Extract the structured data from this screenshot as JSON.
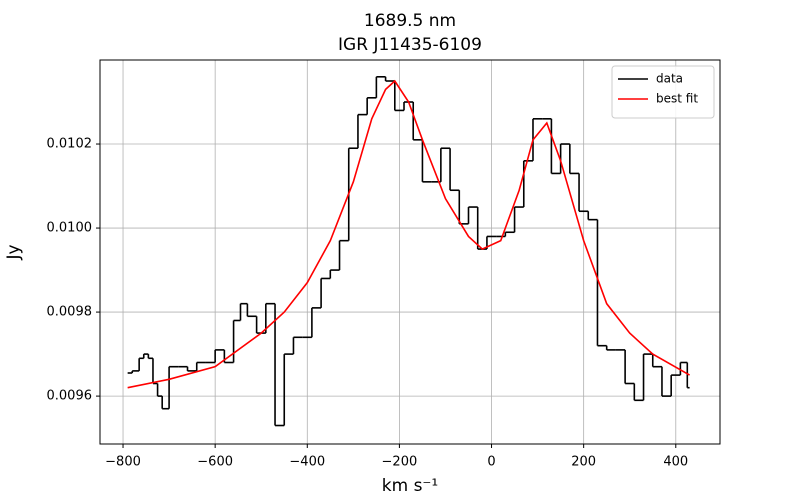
{
  "chart_data": {
    "type": "line",
    "title": "1689.5 nm",
    "subtitle": "IGR J11435-6109",
    "x_label": "km s⁻¹",
    "y_label": "Jy",
    "xlim": [
      -850,
      496
    ],
    "ylim": [
      0.009486,
      0.0104
    ],
    "xticks": [
      {
        "value": -800,
        "label": "−800"
      },
      {
        "value": -600,
        "label": "−600"
      },
      {
        "value": -400,
        "label": "−400"
      },
      {
        "value": -200,
        "label": "−200"
      },
      0,
      200,
      400
    ],
    "yticks": [
      0.0096,
      0.0098,
      {
        "value": 0.01,
        "label": "0.0100"
      },
      0.0102
    ],
    "grid": true,
    "legend": "upper right",
    "series": [
      {
        "name": "data",
        "color": "#000000",
        "style": "steps",
        "x": [
          -790,
          -770,
          -760,
          -750,
          -740,
          -730,
          -720,
          -710,
          -690,
          -670,
          -650,
          -630,
          -610,
          -590,
          -570,
          -550,
          -540,
          -520,
          -500,
          -480,
          -460,
          -440,
          -420,
          -400,
          -380,
          -360,
          -340,
          -320,
          -300,
          -280,
          -260,
          -240,
          -220,
          -200,
          -180,
          -160,
          -140,
          -120,
          -100,
          -80,
          -60,
          -40,
          -20,
          0,
          20,
          40,
          60,
          80,
          100,
          120,
          140,
          160,
          180,
          200,
          220,
          240,
          260,
          280,
          300,
          320,
          340,
          360,
          380,
          400,
          420,
          430
        ],
        "values": [
          0.009655,
          0.00966,
          0.00969,
          0.0097,
          0.00969,
          0.00963,
          0.0096,
          0.00957,
          0.00967,
          0.00967,
          0.00966,
          0.00968,
          0.00968,
          0.00971,
          0.00968,
          0.00978,
          0.00982,
          0.00979,
          0.00975,
          0.00982,
          0.00953,
          0.0097,
          0.00974,
          0.00974,
          0.00981,
          0.00988,
          0.0099,
          0.00997,
          0.01019,
          0.01027,
          0.01031,
          0.01036,
          0.01035,
          0.01028,
          0.0103,
          0.01021,
          0.01011,
          0.01011,
          0.01019,
          0.01009,
          0.01001,
          0.01005,
          0.00995,
          0.00998,
          0.00998,
          0.00999,
          0.01005,
          0.01016,
          0.01026,
          0.01026,
          0.01013,
          0.0102,
          0.01013,
          0.01004,
          0.01002,
          0.00972,
          0.00971,
          0.00971,
          0.00963,
          0.00959,
          0.0097,
          0.00967,
          0.0096,
          0.00965,
          0.00968,
          0.00962
        ]
      },
      {
        "name": "best fit",
        "color": "#ff0000",
        "style": "line",
        "x": [
          -790,
          -700,
          -600,
          -500,
          -450,
          -400,
          -350,
          -300,
          -260,
          -230,
          -210,
          -180,
          -150,
          -100,
          -50,
          -20,
          20,
          60,
          90,
          120,
          150,
          200,
          250,
          300,
          350,
          430
        ],
        "values": [
          0.00962,
          0.00964,
          0.00967,
          0.00975,
          0.0098,
          0.00987,
          0.00997,
          0.01011,
          0.01026,
          0.01033,
          0.01035,
          0.0103,
          0.01021,
          0.01007,
          0.00998,
          0.00995,
          0.00997,
          0.01009,
          0.01021,
          0.01025,
          0.01016,
          0.00997,
          0.00982,
          0.00975,
          0.0097,
          0.00965
        ]
      }
    ]
  }
}
